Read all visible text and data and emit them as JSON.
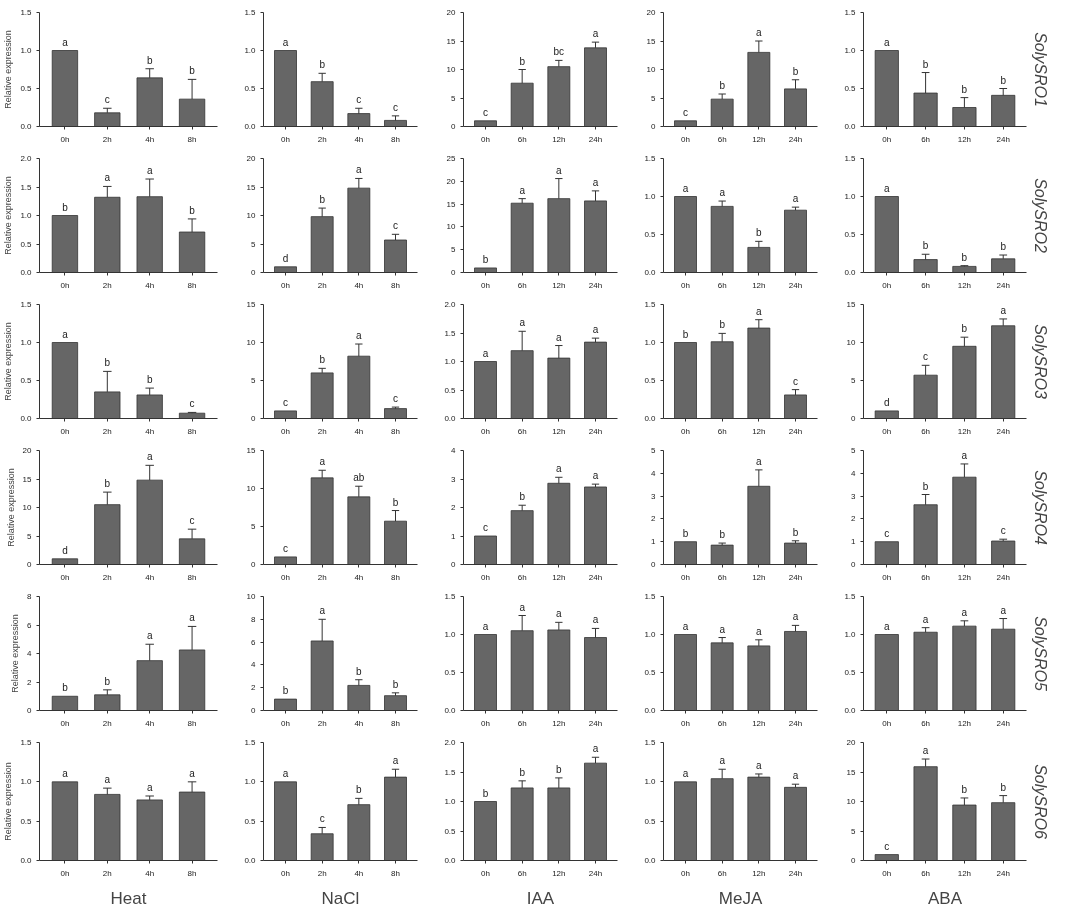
{
  "chart_data": [
    {
      "type": "bar",
      "ylabel": "Relative expression",
      "categories": [
        "0h",
        "2h",
        "4h",
        "8h"
      ],
      "values": [
        1.0,
        0.18,
        0.64,
        0.36
      ],
      "errors": [
        null,
        0.06,
        0.12,
        0.26
      ],
      "color": "#666666",
      "ylim": [
        0,
        1.5
      ],
      "yticks": [
        {
          "value": 0,
          "label": "0.0"
        },
        0.5,
        {
          "value": 1,
          "label": "1.0"
        },
        1.5
      ],
      "annotations": [
        {
          "text": "a",
          "x": "0h",
          "y": 1.0
        },
        {
          "text": "c",
          "x": "2h",
          "y": 0.24
        },
        {
          "text": "b",
          "x": "4h",
          "y": 0.76
        },
        {
          "text": "b",
          "x": "8h",
          "y": 0.62
        }
      ]
    },
    {
      "type": "bar",
      "categories": [
        "0h",
        "2h",
        "4h",
        "8h"
      ],
      "values": [
        1.0,
        0.59,
        0.17,
        0.08
      ],
      "errors": [
        null,
        0.11,
        0.07,
        0.06
      ],
      "color": "#666666",
      "ylim": [
        0,
        1.5
      ],
      "yticks": [
        {
          "value": 0,
          "label": "0.0"
        },
        0.5,
        {
          "value": 1,
          "label": "1.0"
        },
        1.5
      ],
      "annotations": [
        {
          "text": "a",
          "x": "0h",
          "y": 1.0
        },
        {
          "text": "b",
          "x": "2h",
          "y": 0.7
        },
        {
          "text": "c",
          "x": "4h",
          "y": 0.24
        },
        {
          "text": "c",
          "x": "8h",
          "y": 0.14
        }
      ]
    },
    {
      "type": "bar",
      "categories": [
        "0h",
        "6h",
        "12h",
        "24h"
      ],
      "values": [
        1.0,
        7.6,
        10.5,
        13.8
      ],
      "errors": [
        null,
        2.4,
        1.1,
        1.0
      ],
      "color": "#666666",
      "ylim": [
        0,
        20
      ],
      "yticks": [
        0,
        5,
        10,
        15,
        20
      ],
      "annotations": [
        {
          "text": "c",
          "x": "0h",
          "y": 1.0
        },
        {
          "text": "b",
          "x": "6h",
          "y": 10.0
        },
        {
          "text": "bc",
          "x": "12h",
          "y": 11.6
        },
        {
          "text": "a",
          "x": "24h",
          "y": 14.8
        }
      ]
    },
    {
      "type": "bar",
      "categories": [
        "0h",
        "6h",
        "12h",
        "24h"
      ],
      "values": [
        1.0,
        4.8,
        13.0,
        6.6
      ],
      "errors": [
        null,
        0.9,
        2.0,
        1.6
      ],
      "color": "#666666",
      "ylim": [
        0,
        20
      ],
      "yticks": [
        0,
        5,
        10,
        15,
        20
      ],
      "annotations": [
        {
          "text": "c",
          "x": "0h",
          "y": 1.0
        },
        {
          "text": "b",
          "x": "6h",
          "y": 5.7
        },
        {
          "text": "a",
          "x": "12h",
          "y": 15.0
        },
        {
          "text": "b",
          "x": "24h",
          "y": 8.2
        }
      ]
    },
    {
      "type": "bar",
      "y2label": "SolySRO1",
      "categories": [
        "0h",
        "6h",
        "12h",
        "24h"
      ],
      "values": [
        1.0,
        0.44,
        0.25,
        0.41
      ],
      "errors": [
        null,
        0.27,
        0.13,
        0.09
      ],
      "color": "#666666",
      "ylim": [
        0,
        1.5
      ],
      "yticks": [
        {
          "value": 0,
          "label": "0.0"
        },
        0.5,
        {
          "value": 1,
          "label": "1.0"
        },
        1.5
      ],
      "annotations": [
        {
          "text": "a",
          "x": "0h",
          "y": 1.0
        },
        {
          "text": "b",
          "x": "6h",
          "y": 0.71
        },
        {
          "text": "b",
          "x": "12h",
          "y": 0.38
        },
        {
          "text": "b",
          "x": "24h",
          "y": 0.5
        }
      ]
    },
    {
      "type": "bar",
      "ylabel": "Relative expression",
      "categories": [
        "0h",
        "2h",
        "4h",
        "8h"
      ],
      "values": [
        1.0,
        1.32,
        1.33,
        0.71
      ],
      "errors": [
        null,
        0.19,
        0.31,
        0.23
      ],
      "color": "#666666",
      "ylim": [
        0,
        2
      ],
      "yticks": [
        {
          "value": 0,
          "label": "0.0"
        },
        0.5,
        {
          "value": 1,
          "label": "1.0"
        },
        1.5,
        {
          "value": 2,
          "label": "2.0"
        }
      ],
      "annotations": [
        {
          "text": "b",
          "x": "0h",
          "y": 1.0
        },
        {
          "text": "a",
          "x": "2h",
          "y": 1.51
        },
        {
          "text": "a",
          "x": "4h",
          "y": 1.64
        },
        {
          "text": "b",
          "x": "8h",
          "y": 0.94
        }
      ]
    },
    {
      "type": "bar",
      "categories": [
        "0h",
        "2h",
        "4h",
        "8h"
      ],
      "values": [
        1.0,
        9.8,
        14.8,
        5.7
      ],
      "errors": [
        null,
        1.5,
        1.7,
        1.0
      ],
      "color": "#666666",
      "ylim": [
        0,
        20
      ],
      "yticks": [
        0,
        5,
        10,
        15,
        20
      ],
      "annotations": [
        {
          "text": "d",
          "x": "0h",
          "y": 1.0
        },
        {
          "text": "b",
          "x": "2h",
          "y": 11.3
        },
        {
          "text": "a",
          "x": "4h",
          "y": 16.5
        },
        {
          "text": "c",
          "x": "8h",
          "y": 6.7
        }
      ]
    },
    {
      "type": "bar",
      "categories": [
        "0h",
        "6h",
        "12h",
        "24h"
      ],
      "values": [
        1.0,
        15.2,
        16.2,
        15.7
      ],
      "errors": [
        null,
        1.0,
        4.4,
        2.2
      ],
      "color": "#666666",
      "ylim": [
        0,
        25
      ],
      "yticks": [
        0,
        5,
        10,
        15,
        20,
        25
      ],
      "annotations": [
        {
          "text": "b",
          "x": "0h",
          "y": 1.0
        },
        {
          "text": "a",
          "x": "6h",
          "y": 16.2
        },
        {
          "text": "a",
          "x": "12h",
          "y": 20.6
        },
        {
          "text": "a",
          "x": "24h",
          "y": 17.9
        }
      ]
    },
    {
      "type": "bar",
      "categories": [
        "0h",
        "6h",
        "12h",
        "24h"
      ],
      "values": [
        1.0,
        0.87,
        0.33,
        0.82
      ],
      "errors": [
        null,
        0.07,
        0.08,
        0.04
      ],
      "color": "#666666",
      "ylim": [
        0,
        1.5
      ],
      "yticks": [
        {
          "value": 0,
          "label": "0.0"
        },
        0.5,
        {
          "value": 1,
          "label": "1.0"
        },
        1.5
      ],
      "annotations": [
        {
          "text": "a",
          "x": "0h",
          "y": 1.0
        },
        {
          "text": "a",
          "x": "6h",
          "y": 0.94
        },
        {
          "text": "b",
          "x": "12h",
          "y": 0.41
        },
        {
          "text": "a",
          "x": "24h",
          "y": 0.86
        }
      ]
    },
    {
      "type": "bar",
      "y2label": "SolySRO2",
      "categories": [
        "0h",
        "6h",
        "12h",
        "24h"
      ],
      "values": [
        1.0,
        0.17,
        0.08,
        0.18
      ],
      "errors": [
        null,
        0.07,
        0.01,
        0.05
      ],
      "color": "#666666",
      "ylim": [
        0,
        1.5
      ],
      "yticks": [
        {
          "value": 0,
          "label": "0.0"
        },
        0.5,
        {
          "value": 1,
          "label": "1.0"
        },
        1.5
      ],
      "annotations": [
        {
          "text": "a",
          "x": "0h",
          "y": 1.0
        },
        {
          "text": "b",
          "x": "6h",
          "y": 0.24
        },
        {
          "text": "b",
          "x": "12h",
          "y": 0.09
        },
        {
          "text": "b",
          "x": "24h",
          "y": 0.23
        }
      ]
    },
    {
      "type": "bar",
      "ylabel": "Relative expression",
      "categories": [
        "0h",
        "2h",
        "4h",
        "8h"
      ],
      "values": [
        1.0,
        0.35,
        0.31,
        0.07
      ],
      "errors": [
        null,
        0.27,
        0.09,
        0.01
      ],
      "color": "#666666",
      "ylim": [
        0,
        1.5
      ],
      "yticks": [
        {
          "value": 0,
          "label": "0.0"
        },
        0.5,
        {
          "value": 1,
          "label": "1.0"
        },
        1.5
      ],
      "annotations": [
        {
          "text": "a",
          "x": "0h",
          "y": 1.0
        },
        {
          "text": "b",
          "x": "2h",
          "y": 0.62
        },
        {
          "text": "b",
          "x": "4h",
          "y": 0.4
        },
        {
          "text": "c",
          "x": "8h",
          "y": 0.08
        }
      ]
    },
    {
      "type": "bar",
      "categories": [
        "0h",
        "2h",
        "4h",
        "8h"
      ],
      "values": [
        1.0,
        6.0,
        8.2,
        1.3
      ],
      "errors": [
        null,
        0.6,
        1.6,
        0.2
      ],
      "color": "#666666",
      "ylim": [
        0,
        15
      ],
      "yticks": [
        0,
        5,
        10,
        15
      ],
      "annotations": [
        {
          "text": "c",
          "x": "0h",
          "y": 1.0
        },
        {
          "text": "b",
          "x": "2h",
          "y": 6.6
        },
        {
          "text": "a",
          "x": "4h",
          "y": 9.8
        },
        {
          "text": "c",
          "x": "8h",
          "y": 1.5
        }
      ]
    },
    {
      "type": "bar",
      "categories": [
        "0h",
        "6h",
        "12h",
        "24h"
      ],
      "values": [
        1.0,
        1.19,
        1.06,
        1.34
      ],
      "errors": [
        null,
        0.34,
        0.22,
        0.07
      ],
      "color": "#666666",
      "ylim": [
        0,
        2
      ],
      "yticks": [
        {
          "value": 0,
          "label": "0.0"
        },
        0.5,
        {
          "value": 1,
          "label": "1.0"
        },
        1.5,
        {
          "value": 2,
          "label": "2.0"
        }
      ],
      "annotations": [
        {
          "text": "a",
          "x": "0h",
          "y": 1.0
        },
        {
          "text": "a",
          "x": "6h",
          "y": 1.53
        },
        {
          "text": "a",
          "x": "12h",
          "y": 1.28
        },
        {
          "text": "a",
          "x": "24h",
          "y": 1.41
        }
      ]
    },
    {
      "type": "bar",
      "categories": [
        "0h",
        "6h",
        "12h",
        "24h"
      ],
      "values": [
        1.0,
        1.01,
        1.19,
        0.31
      ],
      "errors": [
        null,
        0.11,
        0.11,
        0.07
      ],
      "color": "#666666",
      "ylim": [
        0,
        1.5
      ],
      "yticks": [
        {
          "value": 0,
          "label": "0.0"
        },
        0.5,
        {
          "value": 1,
          "label": "1.0"
        },
        1.5
      ],
      "annotations": [
        {
          "text": "b",
          "x": "0h",
          "y": 1.0
        },
        {
          "text": "b",
          "x": "6h",
          "y": 1.12
        },
        {
          "text": "a",
          "x": "12h",
          "y": 1.3
        },
        {
          "text": "c",
          "x": "24h",
          "y": 0.38
        }
      ]
    },
    {
      "type": "bar",
      "y2label": "SolySRO3",
      "categories": [
        "0h",
        "6h",
        "12h",
        "24h"
      ],
      "values": [
        1.0,
        5.7,
        9.5,
        12.2
      ],
      "errors": [
        null,
        1.3,
        1.2,
        0.9
      ],
      "color": "#666666",
      "ylim": [
        0,
        15
      ],
      "yticks": [
        0,
        5,
        10,
        15
      ],
      "annotations": [
        {
          "text": "d",
          "x": "0h",
          "y": 1.0
        },
        {
          "text": "c",
          "x": "6h",
          "y": 7.0
        },
        {
          "text": "b",
          "x": "12h",
          "y": 10.7
        },
        {
          "text": "a",
          "x": "24h",
          "y": 13.1
        }
      ]
    },
    {
      "type": "bar",
      "ylabel": "Relative expression",
      "categories": [
        "0h",
        "2h",
        "4h",
        "8h"
      ],
      "values": [
        1.0,
        10.5,
        14.8,
        4.5
      ],
      "errors": [
        null,
        2.2,
        2.6,
        1.7
      ],
      "color": "#666666",
      "ylim": [
        0,
        20
      ],
      "yticks": [
        0,
        5,
        10,
        15,
        20
      ],
      "annotations": [
        {
          "text": "d",
          "x": "0h",
          "y": 1.0
        },
        {
          "text": "b",
          "x": "2h",
          "y": 12.7
        },
        {
          "text": "a",
          "x": "4h",
          "y": 17.4
        },
        {
          "text": "c",
          "x": "8h",
          "y": 6.2
        }
      ]
    },
    {
      "type": "bar",
      "categories": [
        "0h",
        "2h",
        "4h",
        "8h"
      ],
      "values": [
        1.0,
        11.4,
        8.9,
        5.7
      ],
      "errors": [
        null,
        1.0,
        1.4,
        1.4
      ],
      "color": "#666666",
      "ylim": [
        0,
        15
      ],
      "yticks": [
        0,
        5,
        10,
        15
      ],
      "annotations": [
        {
          "text": "c",
          "x": "0h",
          "y": 1.0
        },
        {
          "text": "a",
          "x": "2h",
          "y": 12.4
        },
        {
          "text": "ab",
          "x": "4h",
          "y": 10.3
        },
        {
          "text": "b",
          "x": "8h",
          "y": 7.1
        }
      ]
    },
    {
      "type": "bar",
      "categories": [
        "0h",
        "6h",
        "12h",
        "24h"
      ],
      "values": [
        1.0,
        1.89,
        2.85,
        2.72
      ],
      "errors": [
        null,
        0.19,
        0.21,
        0.1
      ],
      "color": "#666666",
      "ylim": [
        0,
        4
      ],
      "yticks": [
        0,
        1,
        2,
        3,
        4
      ],
      "annotations": [
        {
          "text": "c",
          "x": "0h",
          "y": 1.0
        },
        {
          "text": "b",
          "x": "6h",
          "y": 2.08
        },
        {
          "text": "a",
          "x": "12h",
          "y": 3.06
        },
        {
          "text": "a",
          "x": "24h",
          "y": 2.82
        }
      ]
    },
    {
      "type": "bar",
      "categories": [
        "0h",
        "6h",
        "12h",
        "24h"
      ],
      "values": [
        1.0,
        0.85,
        3.43,
        0.94
      ],
      "errors": [
        null,
        0.09,
        0.72,
        0.1
      ],
      "color": "#666666",
      "ylim": [
        0,
        5
      ],
      "yticks": [
        0,
        1,
        2,
        3,
        4,
        5
      ],
      "annotations": [
        {
          "text": "b",
          "x": "0h",
          "y": 1.0
        },
        {
          "text": "b",
          "x": "6h",
          "y": 0.94
        },
        {
          "text": "a",
          "x": "12h",
          "y": 4.15
        },
        {
          "text": "b",
          "x": "24h",
          "y": 1.04
        }
      ]
    },
    {
      "type": "bar",
      "y2label": "SolySRO4",
      "categories": [
        "0h",
        "6h",
        "12h",
        "24h"
      ],
      "values": [
        1.0,
        2.62,
        3.83,
        1.03
      ],
      "errors": [
        null,
        0.45,
        0.58,
        0.08
      ],
      "color": "#666666",
      "ylim": [
        0,
        5
      ],
      "yticks": [
        0,
        1,
        2,
        3,
        4,
        5
      ],
      "annotations": [
        {
          "text": "c",
          "x": "0h",
          "y": 1.0
        },
        {
          "text": "b",
          "x": "6h",
          "y": 3.07
        },
        {
          "text": "a",
          "x": "12h",
          "y": 4.41
        },
        {
          "text": "c",
          "x": "24h",
          "y": 1.11
        }
      ]
    },
    {
      "type": "bar",
      "ylabel": "Relative expression",
      "categories": [
        "0h",
        "2h",
        "4h",
        "8h"
      ],
      "values": [
        1.0,
        1.1,
        3.5,
        4.25
      ],
      "errors": [
        null,
        0.35,
        1.15,
        1.65
      ],
      "color": "#666666",
      "ylim": [
        0,
        8
      ],
      "yticks": [
        0,
        2,
        4,
        6,
        8
      ],
      "annotations": [
        {
          "text": "b",
          "x": "0h",
          "y": 1.0
        },
        {
          "text": "b",
          "x": "2h",
          "y": 1.45
        },
        {
          "text": "a",
          "x": "4h",
          "y": 4.65
        },
        {
          "text": "a",
          "x": "8h",
          "y": 5.9
        }
      ]
    },
    {
      "type": "bar",
      "categories": [
        "0h",
        "2h",
        "4h",
        "8h"
      ],
      "values": [
        1.0,
        6.1,
        2.2,
        1.3
      ],
      "errors": [
        null,
        1.9,
        0.5,
        0.25
      ],
      "color": "#666666",
      "ylim": [
        0,
        10
      ],
      "yticks": [
        0,
        2,
        4,
        6,
        8,
        10
      ],
      "annotations": [
        {
          "text": "b",
          "x": "0h",
          "y": 1.0
        },
        {
          "text": "a",
          "x": "2h",
          "y": 8.0
        },
        {
          "text": "b",
          "x": "4h",
          "y": 2.7
        },
        {
          "text": "b",
          "x": "8h",
          "y": 1.55
        }
      ]
    },
    {
      "type": "bar",
      "categories": [
        "0h",
        "6h",
        "12h",
        "24h"
      ],
      "values": [
        1.0,
        1.05,
        1.06,
        0.96
      ],
      "errors": [
        null,
        0.2,
        0.1,
        0.12
      ],
      "color": "#666666",
      "ylim": [
        0,
        1.5
      ],
      "yticks": [
        {
          "value": 0,
          "label": "0.0"
        },
        0.5,
        {
          "value": 1,
          "label": "1.0"
        },
        1.5
      ],
      "annotations": [
        {
          "text": "a",
          "x": "0h",
          "y": 1.0
        },
        {
          "text": "a",
          "x": "6h",
          "y": 1.25
        },
        {
          "text": "a",
          "x": "12h",
          "y": 1.16
        },
        {
          "text": "a",
          "x": "24h",
          "y": 1.08
        }
      ]
    },
    {
      "type": "bar",
      "categories": [
        "0h",
        "6h",
        "12h",
        "24h"
      ],
      "values": [
        1.0,
        0.89,
        0.85,
        1.04
      ],
      "errors": [
        null,
        0.07,
        0.08,
        0.08
      ],
      "color": "#666666",
      "ylim": [
        0,
        1.5
      ],
      "yticks": [
        {
          "value": 0,
          "label": "0.0"
        },
        0.5,
        {
          "value": 1,
          "label": "1.0"
        },
        1.5
      ],
      "annotations": [
        {
          "text": "a",
          "x": "0h",
          "y": 1.0
        },
        {
          "text": "a",
          "x": "6h",
          "y": 0.96
        },
        {
          "text": "a",
          "x": "12h",
          "y": 0.93
        },
        {
          "text": "a",
          "x": "24h",
          "y": 1.12
        }
      ]
    },
    {
      "type": "bar",
      "y2label": "SolySRO5",
      "categories": [
        "0h",
        "6h",
        "12h",
        "24h"
      ],
      "values": [
        1.0,
        1.03,
        1.11,
        1.07
      ],
      "errors": [
        null,
        0.06,
        0.07,
        0.14
      ],
      "color": "#666666",
      "ylim": [
        0,
        1.5
      ],
      "yticks": [
        {
          "value": 0,
          "label": "0.0"
        },
        0.5,
        {
          "value": 1,
          "label": "1.0"
        },
        1.5
      ],
      "annotations": [
        {
          "text": "a",
          "x": "0h",
          "y": 1.0
        },
        {
          "text": "a",
          "x": "6h",
          "y": 1.09
        },
        {
          "text": "a",
          "x": "12h",
          "y": 1.18
        },
        {
          "text": "a",
          "x": "24h",
          "y": 1.21
        }
      ]
    },
    {
      "type": "bar",
      "ylabel": "Relative expression",
      "xlabel": "Heat",
      "categories": [
        "0h",
        "2h",
        "4h",
        "8h"
      ],
      "values": [
        1.0,
        0.84,
        0.77,
        0.87
      ],
      "errors": [
        null,
        0.08,
        0.05,
        0.13
      ],
      "color": "#666666",
      "ylim": [
        0,
        1.5
      ],
      "yticks": [
        {
          "value": 0,
          "label": "0.0"
        },
        0.5,
        {
          "value": 1,
          "label": "1.0"
        },
        1.5
      ],
      "annotations": [
        {
          "text": "a",
          "x": "0h",
          "y": 1.0
        },
        {
          "text": "a",
          "x": "2h",
          "y": 0.92
        },
        {
          "text": "a",
          "x": "4h",
          "y": 0.82
        },
        {
          "text": "a",
          "x": "8h",
          "y": 1.0
        }
      ]
    },
    {
      "type": "bar",
      "xlabel": "NaCl",
      "categories": [
        "0h",
        "2h",
        "4h",
        "8h"
      ],
      "values": [
        1.0,
        0.34,
        0.71,
        1.06
      ],
      "errors": [
        null,
        0.08,
        0.08,
        0.1
      ],
      "color": "#666666",
      "ylim": [
        0,
        1.5
      ],
      "yticks": [
        {
          "value": 0,
          "label": "0.0"
        },
        0.5,
        {
          "value": 1,
          "label": "1.0"
        },
        1.5
      ],
      "annotations": [
        {
          "text": "a",
          "x": "0h",
          "y": 1.0
        },
        {
          "text": "c",
          "x": "2h",
          "y": 0.42
        },
        {
          "text": "b",
          "x": "4h",
          "y": 0.79
        },
        {
          "text": "a",
          "x": "8h",
          "y": 1.16
        }
      ]
    },
    {
      "type": "bar",
      "xlabel": "IAA",
      "categories": [
        "0h",
        "6h",
        "12h",
        "24h"
      ],
      "values": [
        1.0,
        1.23,
        1.23,
        1.65
      ],
      "errors": [
        null,
        0.12,
        0.17,
        0.1
      ],
      "color": "#666666",
      "ylim": [
        0,
        2
      ],
      "yticks": [
        {
          "value": 0,
          "label": "0.0"
        },
        0.5,
        {
          "value": 1,
          "label": "1.0"
        },
        1.5,
        {
          "value": 2,
          "label": "2.0"
        }
      ],
      "annotations": [
        {
          "text": "b",
          "x": "0h",
          "y": 1.0
        },
        {
          "text": "b",
          "x": "6h",
          "y": 1.35
        },
        {
          "text": "b",
          "x": "12h",
          "y": 1.4
        },
        {
          "text": "a",
          "x": "24h",
          "y": 1.75
        }
      ]
    },
    {
      "type": "bar",
      "xlabel": "MeJA",
      "categories": [
        "0h",
        "6h",
        "12h",
        "24h"
      ],
      "values": [
        1.0,
        1.04,
        1.06,
        0.93
      ],
      "errors": [
        null,
        0.12,
        0.04,
        0.04
      ],
      "color": "#666666",
      "ylim": [
        0,
        1.5
      ],
      "yticks": [
        {
          "value": 0,
          "label": "0.0"
        },
        0.5,
        {
          "value": 1,
          "label": "1.0"
        },
        1.5
      ],
      "annotations": [
        {
          "text": "a",
          "x": "0h",
          "y": 1.0
        },
        {
          "text": "a",
          "x": "6h",
          "y": 1.16
        },
        {
          "text": "a",
          "x": "12h",
          "y": 1.1
        },
        {
          "text": "a",
          "x": "24h",
          "y": 0.97
        }
      ]
    },
    {
      "type": "bar",
      "xlabel": "ABA",
      "y2label": "SolySRO6",
      "categories": [
        "0h",
        "6h",
        "12h",
        "24h"
      ],
      "values": [
        1.0,
        15.9,
        9.4,
        9.8
      ],
      "errors": [
        null,
        1.3,
        1.2,
        1.2
      ],
      "color": "#666666",
      "ylim": [
        0,
        20
      ],
      "yticks": [
        0,
        5,
        10,
        15,
        20
      ],
      "annotations": [
        {
          "text": "c",
          "x": "0h",
          "y": 1.0
        },
        {
          "text": "a",
          "x": "6h",
          "y": 17.2
        },
        {
          "text": "b",
          "x": "12h",
          "y": 10.6
        },
        {
          "text": "b",
          "x": "24h",
          "y": 11.0
        }
      ]
    }
  ]
}
